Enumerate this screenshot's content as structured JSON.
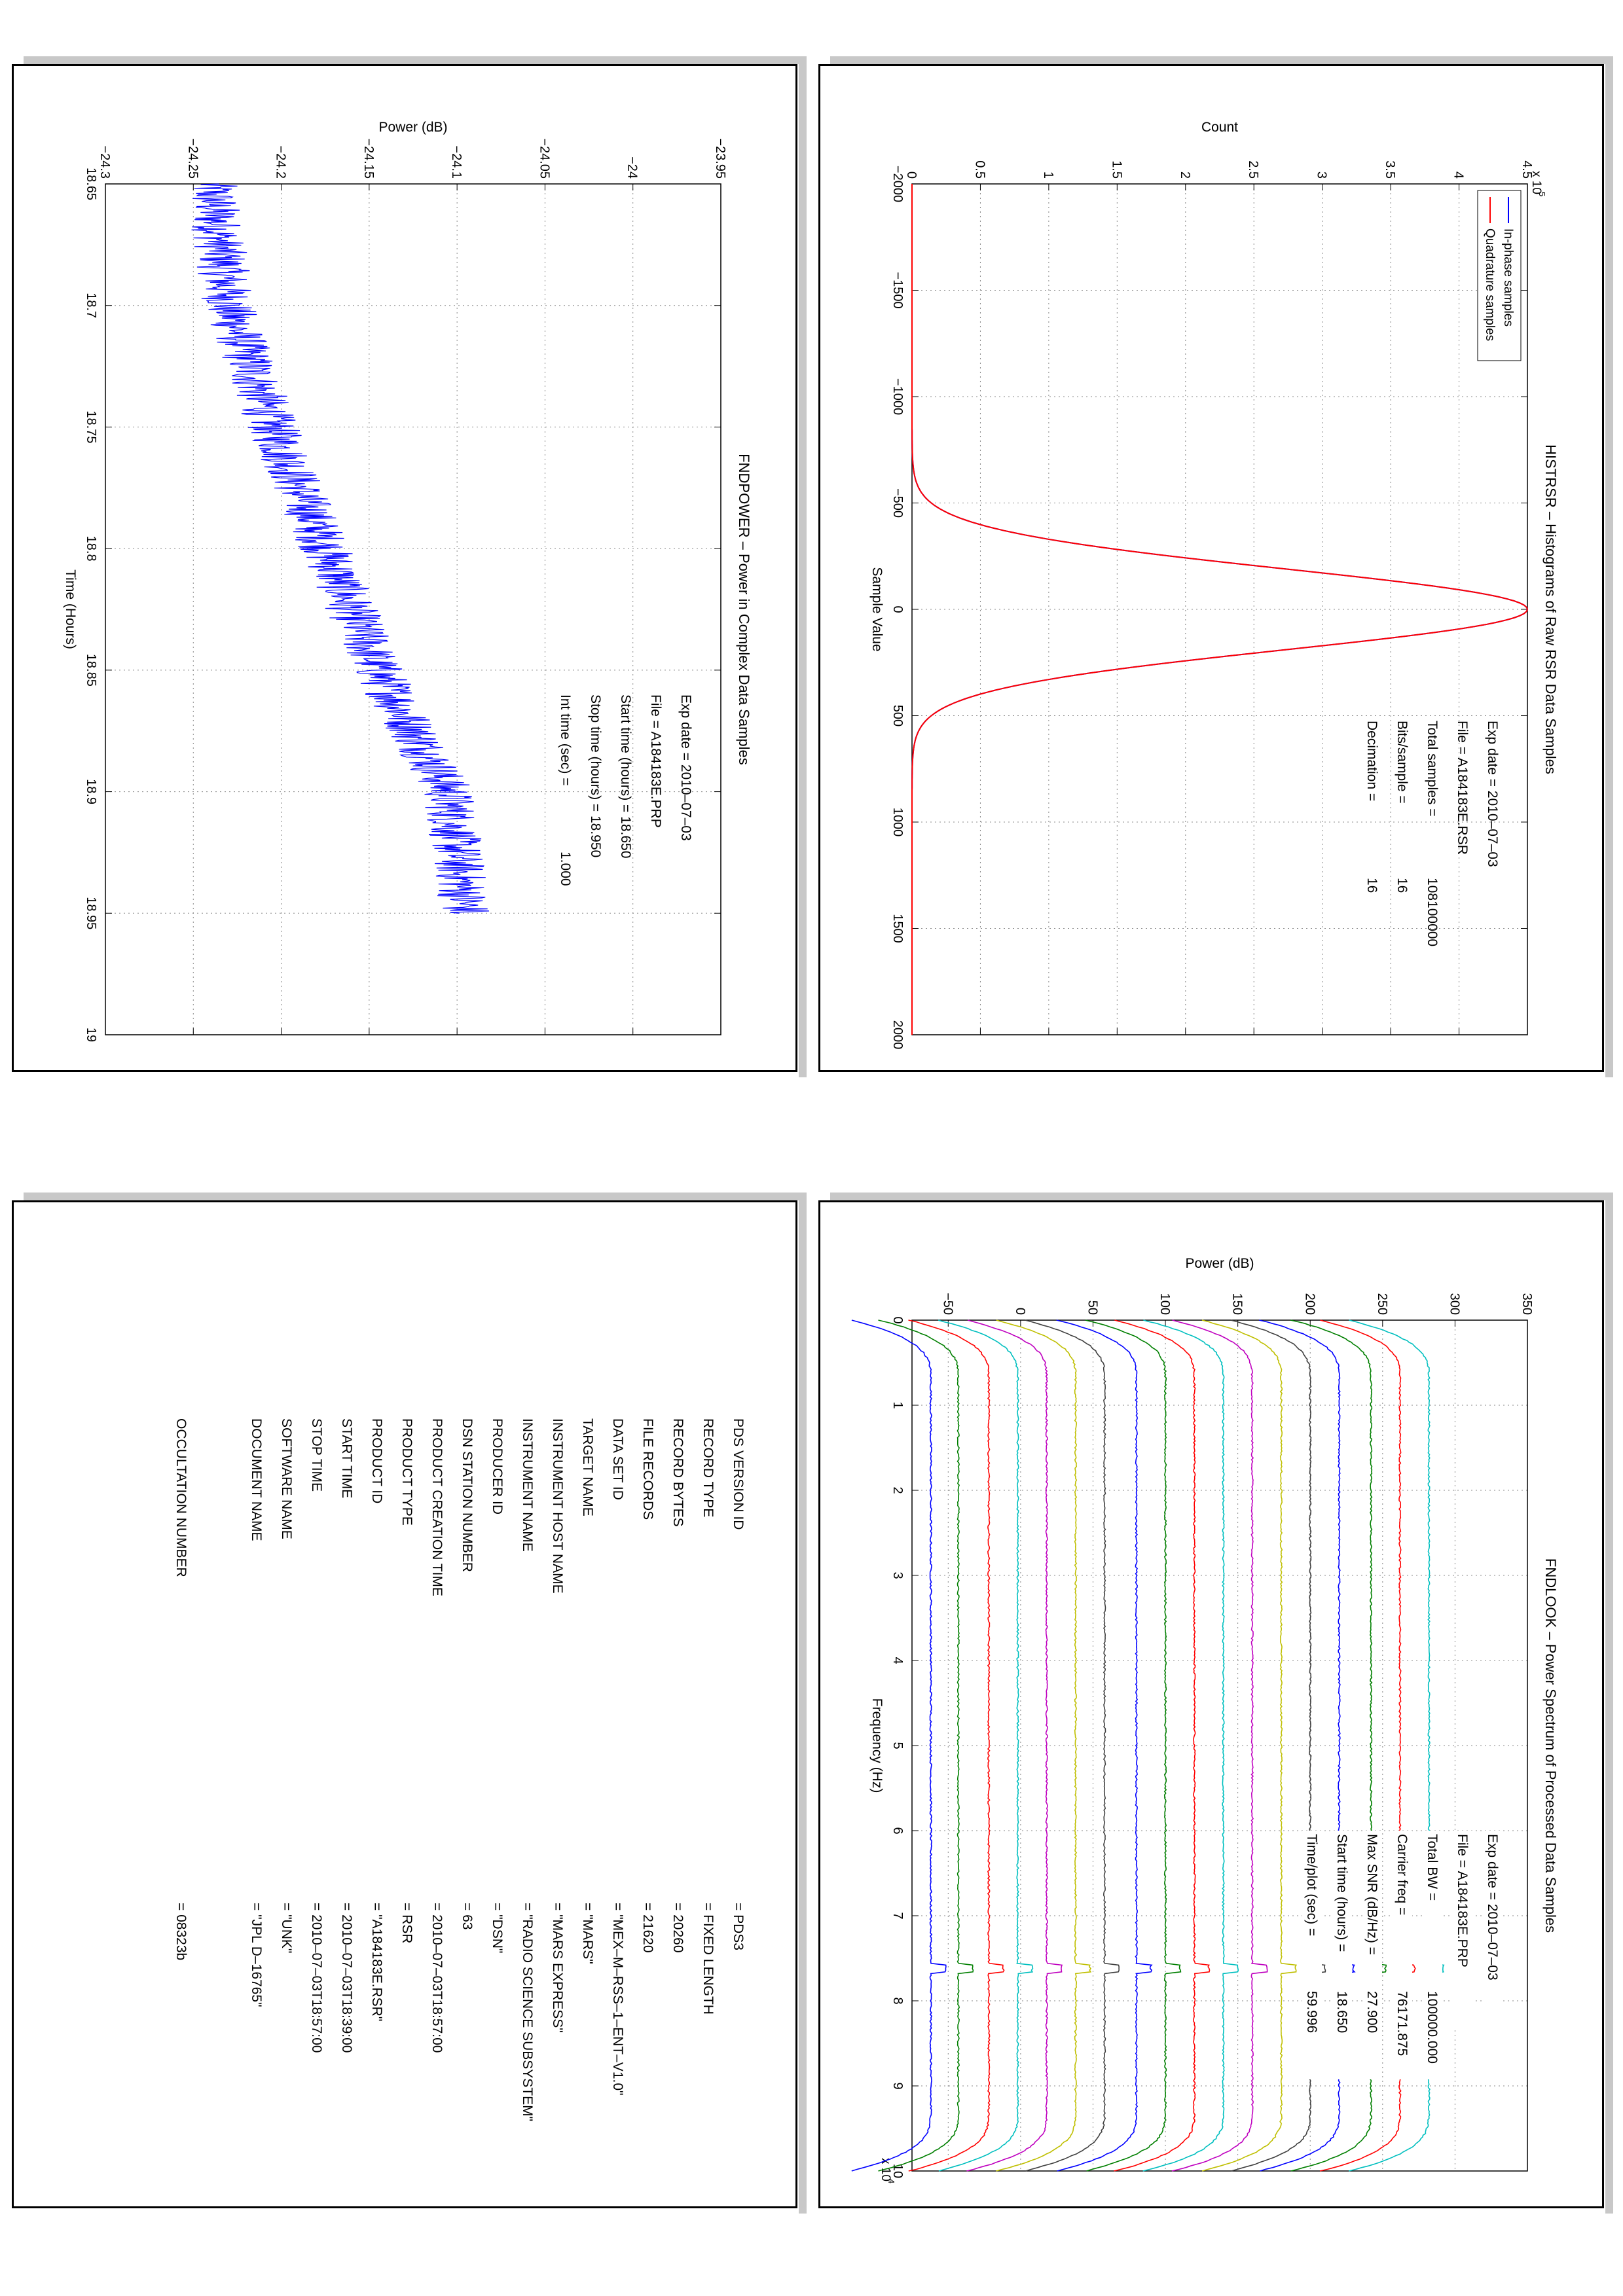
{
  "chart_data": [
    {
      "id": "histrsr",
      "type": "line",
      "title": "HISTRSR – Histograms of Raw RSR Data Samples",
      "xlabel": "Sample Value",
      "ylabel": "Count",
      "y_exponent_label": "x 10",
      "y_exponent_power": "5",
      "xlim": [
        -2000,
        2000
      ],
      "ylim": [
        0,
        4.5
      ],
      "x_ticks": [
        "−2000",
        "−1500",
        "−1000",
        "−500",
        "0",
        "500",
        "1000",
        "1500",
        "2000"
      ],
      "y_ticks": [
        "0",
        "0.5",
        "1",
        "1.5",
        "2",
        "2.5",
        "3",
        "3.5",
        "4",
        "4.5"
      ],
      "grid": true,
      "legend_position": "top-left",
      "series": [
        {
          "name": "In-phase samples",
          "color": "#0000ff",
          "peak": 4.5,
          "sigma": 190
        },
        {
          "name": "Quadrature samples",
          "color": "#ff0000",
          "peak": 4.5,
          "sigma": 190
        }
      ],
      "annotations": [
        {
          "label": "Exp date = 2010–07–03",
          "value": ""
        },
        {
          "label": "File = A184183E.RSR",
          "value": ""
        },
        {
          "label": "Total samples =",
          "value": "108100000"
        },
        {
          "label": "Bits/sample   =",
          "value": "16"
        },
        {
          "label": "Decimation    =",
          "value": "16"
        }
      ]
    },
    {
      "id": "fndpower",
      "type": "line",
      "title": "FNDPOWER – Power in Complex Data Samples",
      "xlabel": "Time (Hours)",
      "ylabel": "Power (dB)",
      "xlim": [
        18.65,
        19
      ],
      "ylim": [
        -24.3,
        -23.95
      ],
      "x_ticks": [
        "18.65",
        "18.7",
        "18.75",
        "18.8",
        "18.85",
        "18.9",
        "18.95",
        "19"
      ],
      "y_ticks": [
        "−24.3",
        "−24.25",
        "−24.2",
        "−24.15",
        "−24.1",
        "−24.05",
        "−24",
        "−23.95"
      ],
      "grid": true,
      "series": [
        {
          "name": "",
          "color": "#0000ff",
          "x": [
            18.65,
            18.7,
            18.75,
            18.8,
            18.85,
            18.9,
            18.95
          ],
          "y": [
            -24.24,
            -24.23,
            -24.205,
            -24.175,
            -24.145,
            -24.105,
            -24.095
          ]
        }
      ],
      "annotations": [
        {
          "label": "Exp date = 2010–07–03",
          "value": ""
        },
        {
          "label": "File = A184183E.PRP",
          "value": ""
        },
        {
          "label": "Start time (hours) = 18.650",
          "value": ""
        },
        {
          "label": "Stop time (hours) = 18.950",
          "value": ""
        },
        {
          "label": "Int time (sec) =",
          "value": "1.000"
        }
      ]
    },
    {
      "id": "fndlook",
      "type": "line",
      "title": "FNDLOOK – Power Spectrum of Processed Data Samples",
      "xlabel": "Frequency (Hz)",
      "ylabel": "Power (dB)",
      "x_exponent_label": "x 10",
      "x_exponent_power": "4",
      "xlim": [
        0,
        10
      ],
      "ylim": [
        -75,
        350
      ],
      "x_ticks": [
        "0",
        "1",
        "2",
        "3",
        "4",
        "5",
        "6",
        "7",
        "8",
        "9",
        "10"
      ],
      "y_ticks": [
        "−50",
        "0",
        "50",
        "100",
        "150",
        "200",
        "250",
        "300",
        "350"
      ],
      "grid": true,
      "series": [
        {
          "name": "",
          "color": "#0000ff",
          "level": -62
        },
        {
          "name": "",
          "color": "#007f00",
          "level": -43
        },
        {
          "name": "",
          "color": "#ff0000",
          "level": -22
        },
        {
          "name": "",
          "color": "#00bfbf",
          "level": -2
        },
        {
          "name": "",
          "color": "#bf00bf",
          "level": 18
        },
        {
          "name": "",
          "color": "#bfbf00",
          "level": 38
        },
        {
          "name": "",
          "color": "#404040",
          "level": 58
        },
        {
          "name": "",
          "color": "#0000ff",
          "level": 80
        },
        {
          "name": "",
          "color": "#007f00",
          "level": 100
        },
        {
          "name": "",
          "color": "#ff0000",
          "level": 120
        },
        {
          "name": "",
          "color": "#00bfbf",
          "level": 140
        },
        {
          "name": "",
          "color": "#bf00bf",
          "level": 160
        },
        {
          "name": "",
          "color": "#bfbf00",
          "level": 180
        },
        {
          "name": "",
          "color": "#404040",
          "level": 200
        },
        {
          "name": "",
          "color": "#0000ff",
          "level": 220
        },
        {
          "name": "",
          "color": "#007f00",
          "level": 242
        },
        {
          "name": "",
          "color": "#ff0000",
          "level": 262
        },
        {
          "name": "",
          "color": "#00bfbf",
          "level": 282
        }
      ],
      "annotations": [
        {
          "label": "Exp date = 2010–07–03",
          "value": ""
        },
        {
          "label": "File = A184183E.PRP",
          "value": ""
        },
        {
          "label": "Total BW =",
          "value": "100000.000"
        },
        {
          "label": "Carrier freq =",
          "value": "76171.875"
        },
        {
          "label": "Max SNR (dB/Hz) =",
          "value": "27.900"
        },
        {
          "label": "Start time (hours) =",
          "value": "18.650"
        },
        {
          "label": "Time/plot (sec) =",
          "value": "59.996"
        }
      ]
    }
  ],
  "label_table": {
    "rows": [
      {
        "key": "PDS VERSION ID",
        "value": "= PDS3"
      },
      {
        "key": "RECORD TYPE",
        "value": "= FIXED LENGTH"
      },
      {
        "key": "RECORD BYTES",
        "value": "= 20260"
      },
      {
        "key": "FILE RECORDS",
        "value": "= 21620"
      },
      {
        "key": "DATA SET ID",
        "value": "= \"MEX–M–RSS–1–ENT–V1.0\""
      },
      {
        "key": "TARGET NAME",
        "value": "= \"MARS\""
      },
      {
        "key": "INSTRUMENT HOST NAME",
        "value": "= \"MARS EXPRESS\""
      },
      {
        "key": "INSTRUMENT NAME",
        "value": "= \"RADIO SCIENCE SUBSYSTEM\""
      },
      {
        "key": "PRODUCER ID",
        "value": "= \"DSN\""
      },
      {
        "key": "DSN STATION NUMBER",
        "value": "= 63"
      },
      {
        "key": "PRODUCT CREATION TIME",
        "value": "= 2010–07–03T18:57:00"
      },
      {
        "key": "PRODUCT TYPE",
        "value": "= RSR"
      },
      {
        "key": "PRODUCT ID",
        "value": "= \"A184183E.RSR\""
      },
      {
        "key": "START TIME",
        "value": "= 2010–07–03T18:39:00"
      },
      {
        "key": "STOP TIME",
        "value": "= 2010–07–03T18:57:00"
      },
      {
        "key": "SOFTWARE NAME",
        "value": "= \"UNK\""
      },
      {
        "key": "DOCUMENT NAME",
        "value": "= \"JPL D–16765\""
      }
    ],
    "occultation_key": "OCCULTATION NUMBER",
    "occultation_value": "= 08323b"
  }
}
